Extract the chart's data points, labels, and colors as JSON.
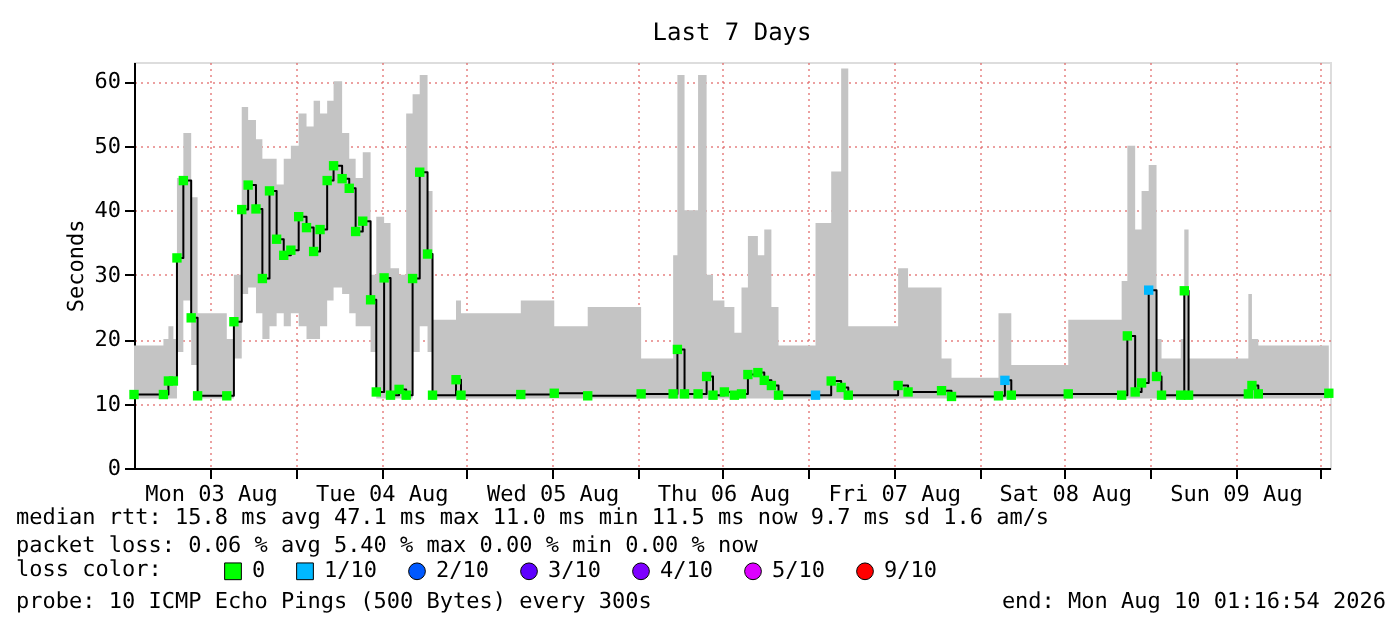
{
  "chart_data": {
    "type": "step",
    "title": "Last 7 Days",
    "ylabel": "Seconds",
    "x": [
      "2026-08-03T01:16",
      "2026-08-03T05:24",
      "2026-08-03T06:06",
      "2026-08-03T06:48",
      "2026-08-03T07:18",
      "2026-08-03T08:12",
      "2026-08-03T09:18",
      "2026-08-03T10:12",
      "2026-08-03T14:18",
      "2026-08-03T15:18",
      "2026-08-03T16:24",
      "2026-08-03T17:18",
      "2026-08-03T18:24",
      "2026-08-03T19:18",
      "2026-08-03T20:18",
      "2026-08-03T21:18",
      "2026-08-03T22:18",
      "2026-08-03T23:18",
      "2026-08-04T00:24",
      "2026-08-04T01:30",
      "2026-08-04T02:30",
      "2026-08-04T03:24",
      "2026-08-04T04:24",
      "2026-08-04T05:18",
      "2026-08-04T06:30",
      "2026-08-04T07:30",
      "2026-08-04T08:24",
      "2026-08-04T09:24",
      "2026-08-04T10:30",
      "2026-08-04T11:18",
      "2026-08-04T12:24",
      "2026-08-04T13:18",
      "2026-08-04T14:30",
      "2026-08-04T15:30",
      "2026-08-04T16:24",
      "2026-08-04T17:24",
      "2026-08-04T18:30",
      "2026-08-04T19:12",
      "2026-08-04T22:30",
      "2026-08-04T23:12",
      "2026-08-05T07:36",
      "2026-08-05T12:18",
      "2026-08-05T17:00",
      "2026-08-06T00:30",
      "2026-08-06T05:00",
      "2026-08-06T05:36",
      "2026-08-06T06:36",
      "2026-08-06T08:30",
      "2026-08-06T09:42",
      "2026-08-06T10:36",
      "2026-08-06T12:12",
      "2026-08-06T13:36",
      "2026-08-06T14:36",
      "2026-08-06T15:30",
      "2026-08-06T16:54",
      "2026-08-06T17:48",
      "2026-08-06T18:48",
      "2026-08-06T19:48",
      "2026-08-07T01:00",
      "2026-08-07T03:12",
      "2026-08-07T04:36",
      "2026-08-07T05:36",
      "2026-08-07T12:36",
      "2026-08-07T14:00",
      "2026-08-07T18:42",
      "2026-08-07T20:06",
      "2026-08-08T02:42",
      "2026-08-08T03:36",
      "2026-08-08T04:30",
      "2026-08-08T12:30",
      "2026-08-08T20:00",
      "2026-08-08T20:48",
      "2026-08-08T21:54",
      "2026-08-08T22:48",
      "2026-08-08T23:48",
      "2026-08-09T00:54",
      "2026-08-09T01:36",
      "2026-08-09T04:18",
      "2026-08-09T04:48",
      "2026-08-09T05:24",
      "2026-08-09T13:48",
      "2026-08-09T14:18",
      "2026-08-09T15:12",
      "2026-08-10T01:06"
    ],
    "xlim": [
      "2026-08-03T01:16",
      "2026-08-10T01:16"
    ],
    "xticks": [
      {
        "value": "2026-08-03T12:00",
        "label": "Mon 03 Aug"
      },
      {
        "value": "2026-08-04T00:00",
        "label": null
      },
      {
        "value": "2026-08-04T12:00",
        "label": "Tue 04 Aug"
      },
      {
        "value": "2026-08-05T00:00",
        "label": null
      },
      {
        "value": "2026-08-05T12:00",
        "label": "Wed 05 Aug"
      },
      {
        "value": "2026-08-06T00:00",
        "label": null
      },
      {
        "value": "2026-08-06T12:00",
        "label": "Thu 06 Aug"
      },
      {
        "value": "2026-08-07T00:00",
        "label": null
      },
      {
        "value": "2026-08-07T12:00",
        "label": "Fri 07 Aug"
      },
      {
        "value": "2026-08-08T00:00",
        "label": null
      },
      {
        "value": "2026-08-08T12:00",
        "label": "Sat 08 Aug"
      },
      {
        "value": "2026-08-09T00:00",
        "label": null
      },
      {
        "value": "2026-08-09T12:00",
        "label": "Sun 09 Aug"
      },
      {
        "value": "2026-08-10T00:00",
        "label": null
      }
    ],
    "ylim": [
      0,
      63
    ],
    "yticks": [
      0,
      10,
      20,
      30,
      40,
      50,
      60
    ],
    "grid": true,
    "legend": "bottom",
    "legend_title": "loss color:",
    "series": [
      {
        "color": "#000000",
        "values": [
          11.4,
          11.4,
          13.5,
          13.5,
          32.6,
          44.6,
          23.3,
          11.2,
          11.2,
          22.7,
          40.1,
          43.9,
          40.2,
          29.4,
          43.0,
          35.5,
          33.0,
          33.8,
          39.0,
          37.3,
          33.6,
          37.0,
          44.6,
          46.9,
          44.9,
          43.4,
          36.7,
          38.3,
          26.1,
          11.8,
          29.5,
          11.3,
          12.2,
          11.3,
          29.4,
          45.9,
          33.2,
          11.3,
          13.7,
          11.3,
          11.4,
          11.6,
          11.2,
          11.5,
          11.5,
          18.4,
          11.5,
          11.5,
          14.2,
          11.3,
          11.8,
          11.3,
          11.5,
          14.5,
          14.8,
          13.6,
          12.8,
          11.3,
          11.3,
          13.5,
          12.5,
          11.3,
          12.8,
          11.8,
          12.0,
          11.1,
          11.2,
          13.6,
          11.3,
          11.5,
          11.3,
          20.5,
          11.8,
          13.2,
          27.6,
          14.2,
          11.3,
          11.3,
          27.5,
          11.3,
          11.5,
          12.8,
          11.5,
          11.6
        ],
        "upper": [
          19,
          20,
          22,
          20,
          45,
          52,
          42,
          24,
          20,
          30,
          56,
          54,
          51,
          48,
          48,
          44,
          48,
          50,
          55,
          53,
          57,
          55,
          57,
          60,
          52,
          48,
          45,
          49,
          30,
          39,
          38,
          31,
          30,
          55,
          58,
          61,
          43,
          23,
          26,
          24,
          26,
          22,
          25,
          17,
          33,
          61,
          40,
          61,
          30,
          26,
          25,
          21,
          28,
          36,
          33,
          37,
          25,
          19,
          38,
          46,
          62,
          22,
          31,
          28,
          17,
          14,
          24,
          24,
          16,
          23,
          29,
          50,
          37,
          43,
          47,
          20,
          17,
          20,
          37,
          17,
          27,
          20,
          19,
          16
        ],
        "lower": [
          10.8,
          10.8,
          10.8,
          10.8,
          18,
          26,
          16,
          10.8,
          10.8,
          17,
          27,
          28,
          24,
          20,
          22,
          24,
          22,
          24,
          22,
          20,
          20,
          22,
          26,
          28,
          27,
          24,
          22,
          22,
          18,
          10.8,
          10.8,
          10.8,
          10.8,
          10.8,
          18,
          22,
          18,
          10.8,
          10.8,
          10.8,
          10.8,
          10.8,
          10.8,
          10.8,
          10.8,
          10.8,
          10.8,
          10.8,
          10.8,
          10.8,
          10.8,
          10.8,
          10.8,
          10.8,
          10.8,
          10.8,
          10.8,
          10.8,
          10.8,
          10.8,
          10.8,
          10.8,
          10.8,
          10.8,
          10.8,
          10.8,
          10.8,
          10.8,
          10.8,
          10.8,
          10.8,
          10.8,
          10.8,
          10.8,
          10.8,
          10.8,
          10.8,
          10.8,
          10.8,
          10.8,
          10.8,
          10.8,
          10.8,
          10.8
        ]
      },
      {
        "name": "0",
        "type": "scatter",
        "marker": "square",
        "color": "#00ff00",
        "values": [
          11.4,
          11.4,
          13.5,
          13.5,
          32.6,
          44.6,
          23.3,
          11.2,
          11.2,
          22.7,
          40.1,
          43.9,
          40.2,
          29.4,
          43.0,
          35.5,
          33.0,
          33.8,
          39.0,
          37.3,
          33.6,
          37.0,
          44.6,
          46.9,
          44.9,
          43.4,
          36.7,
          38.3,
          26.1,
          11.8,
          29.5,
          11.3,
          12.2,
          11.3,
          29.4,
          45.9,
          33.2,
          11.3,
          13.7,
          11.3,
          11.4,
          11.6,
          11.2,
          11.5,
          11.5,
          18.4,
          11.5,
          11.5,
          14.2,
          11.3,
          11.8,
          11.3,
          11.5,
          14.5,
          14.8,
          13.6,
          12.8,
          11.3,
          null,
          13.5,
          12.5,
          11.3,
          12.8,
          11.8,
          12.0,
          11.1,
          11.2,
          null,
          11.3,
          11.5,
          11.3,
          20.5,
          11.8,
          13.2,
          null,
          14.2,
          11.3,
          11.3,
          27.5,
          11.3,
          11.5,
          12.8,
          11.5,
          11.6
        ]
      },
      {
        "name": "1/10",
        "type": "scatter",
        "marker": "square",
        "color": "#00b8ff",
        "x": [
          "2026-08-07T01:00",
          "2026-08-08T03:36",
          "2026-08-08T23:48"
        ],
        "values": [
          11.3,
          13.6,
          27.6
        ]
      },
      {
        "name": "2/10",
        "type": "scatter",
        "color": "#0059ff",
        "values": [
          null,
          null,
          null,
          null,
          null,
          null,
          null,
          null,
          null,
          null,
          null,
          null,
          null,
          null,
          null,
          null,
          null,
          null,
          null,
          null,
          null,
          null,
          null,
          null,
          null,
          null,
          null,
          null,
          null,
          null,
          null,
          null,
          null,
          null,
          null,
          null,
          null,
          null,
          null,
          null,
          null,
          null,
          null,
          null,
          null,
          null,
          null,
          null,
          null,
          null,
          null,
          null,
          null,
          null,
          null,
          null,
          null,
          null,
          null,
          null,
          null,
          null,
          null,
          null,
          null,
          null,
          null,
          null,
          null,
          null,
          null,
          null,
          null,
          null,
          null,
          null,
          null,
          null,
          null,
          null,
          null,
          null,
          null,
          null
        ]
      },
      {
        "name": "3/10",
        "type": "scatter",
        "color": "#5e00ff",
        "values": [
          null,
          null,
          null,
          null,
          null,
          null,
          null,
          null,
          null,
          null,
          null,
          null,
          null,
          null,
          null,
          null,
          null,
          null,
          null,
          null,
          null,
          null,
          null,
          null,
          null,
          null,
          null,
          null,
          null,
          null,
          null,
          null,
          null,
          null,
          null,
          null,
          null,
          null,
          null,
          null,
          null,
          null,
          null,
          null,
          null,
          null,
          null,
          null,
          null,
          null,
          null,
          null,
          null,
          null,
          null,
          null,
          null,
          null,
          null,
          null,
          null,
          null,
          null,
          null,
          null,
          null,
          null,
          null,
          null,
          null,
          null,
          null,
          null,
          null,
          null,
          null,
          null,
          null,
          null,
          null,
          null,
          null,
          null,
          null
        ]
      },
      {
        "name": "4/10",
        "type": "scatter",
        "color": "#7e00ff",
        "values": [
          null,
          null,
          null,
          null,
          null,
          null,
          null,
          null,
          null,
          null,
          null,
          null,
          null,
          null,
          null,
          null,
          null,
          null,
          null,
          null,
          null,
          null,
          null,
          null,
          null,
          null,
          null,
          null,
          null,
          null,
          null,
          null,
          null,
          null,
          null,
          null,
          null,
          null,
          null,
          null,
          null,
          null,
          null,
          null,
          null,
          null,
          null,
          null,
          null,
          null,
          null,
          null,
          null,
          null,
          null,
          null,
          null,
          null,
          null,
          null,
          null,
          null,
          null,
          null,
          null,
          null,
          null,
          null,
          null,
          null,
          null,
          null,
          null,
          null,
          null,
          null,
          null,
          null,
          null,
          null,
          null,
          null,
          null,
          null
        ]
      },
      {
        "name": "5/10",
        "type": "scatter",
        "color": "#dd00ff",
        "values": [
          null,
          null,
          null,
          null,
          null,
          null,
          null,
          null,
          null,
          null,
          null,
          null,
          null,
          null,
          null,
          null,
          null,
          null,
          null,
          null,
          null,
          null,
          null,
          null,
          null,
          null,
          null,
          null,
          null,
          null,
          null,
          null,
          null,
          null,
          null,
          null,
          null,
          null,
          null,
          null,
          null,
          null,
          null,
          null,
          null,
          null,
          null,
          null,
          null,
          null,
          null,
          null,
          null,
          null,
          null,
          null,
          null,
          null,
          null,
          null,
          null,
          null,
          null,
          null,
          null,
          null,
          null,
          null,
          null,
          null,
          null,
          null,
          null,
          null,
          null,
          null,
          null,
          null,
          null,
          null,
          null,
          null,
          null,
          null
        ]
      },
      {
        "name": "9/10",
        "type": "scatter",
        "color": "#ff0000",
        "values": [
          null,
          null,
          null,
          null,
          null,
          null,
          null,
          null,
          null,
          null,
          null,
          null,
          null,
          null,
          null,
          null,
          null,
          null,
          null,
          null,
          null,
          null,
          null,
          null,
          null,
          null,
          null,
          null,
          null,
          null,
          null,
          null,
          null,
          null,
          null,
          null,
          null,
          null,
          null,
          null,
          null,
          null,
          null,
          null,
          null,
          null,
          null,
          null,
          null,
          null,
          null,
          null,
          null,
          null,
          null,
          null,
          null,
          null,
          null,
          null,
          null,
          null,
          null,
          null,
          null,
          null,
          null,
          null,
          null,
          null,
          null,
          null,
          null,
          null,
          null,
          null,
          null,
          null,
          null,
          null,
          null,
          null,
          null,
          null
        ]
      }
    ],
    "annotations": [
      "median rtt:  15.8 ms avg  47.1 ms max  11.0 ms min  11.5 ms now  9.7 ms sd  1.6  am/s",
      "packet loss: 0.06 % avg  5.40 % max  0.00 % min  0.00 % now",
      "probe:       10 ICMP Echo Pings (500 Bytes) every 300s",
      "end: Mon Aug 10 01:16:54 2026"
    ]
  }
}
